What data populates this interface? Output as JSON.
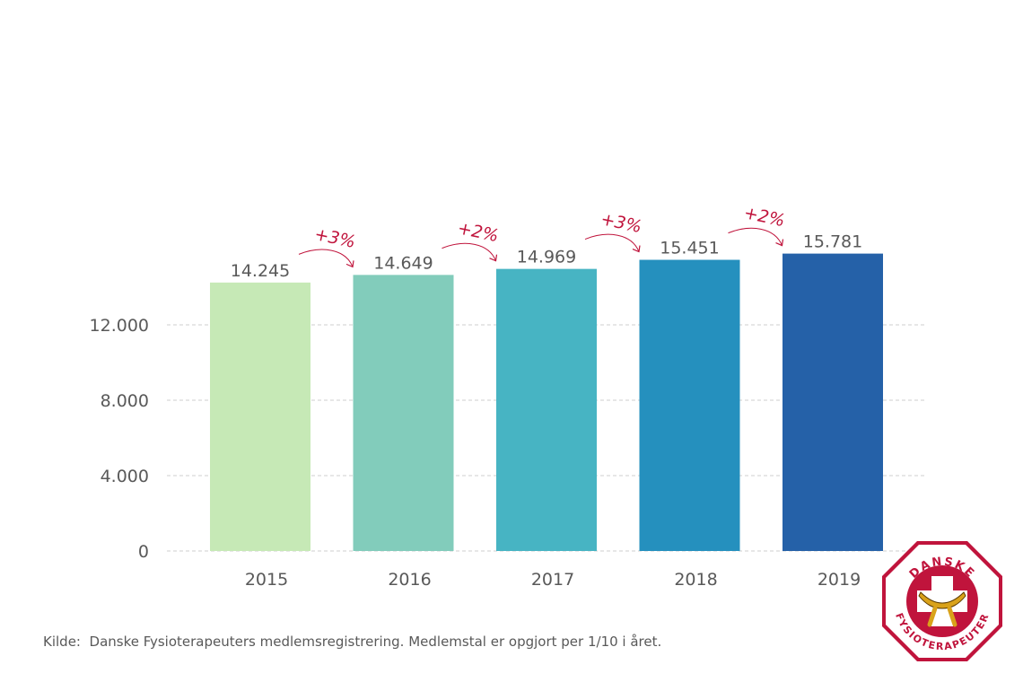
{
  "chart_data": {
    "type": "bar",
    "categories": [
      "2015",
      "2016",
      "2017",
      "2018",
      "2019"
    ],
    "values": [
      14245,
      14649,
      14969,
      15451,
      15781
    ],
    "value_labels": [
      "14.245",
      "14.649",
      "14.969",
      "15.451",
      "15.781"
    ],
    "growth_labels": [
      "+3%",
      "+2%",
      "+3%",
      "+2%"
    ],
    "yticks": [
      0,
      4000,
      8000,
      12000
    ],
    "ytick_labels": [
      "0",
      "4.000",
      "8.000",
      "12.000"
    ],
    "ylim": [
      0,
      18000
    ],
    "grid": true,
    "xlabel": "",
    "ylabel": "",
    "colors": [
      "#c6e9b6",
      "#82ccbb",
      "#47b4c3",
      "#2590be",
      "#2561a8"
    ],
    "growth_color": "#c0143c"
  },
  "footer": {
    "source_prefix": "Kilde:",
    "source_text": "Danske Fysioterapeuters medlemsregistrering. Medlemstal er opgjort per 1/10 i året."
  },
  "logo": {
    "text_top": "DANSKE",
    "text_bottom": "FYSIOTERAPEUTER",
    "color": "#c0143c"
  }
}
